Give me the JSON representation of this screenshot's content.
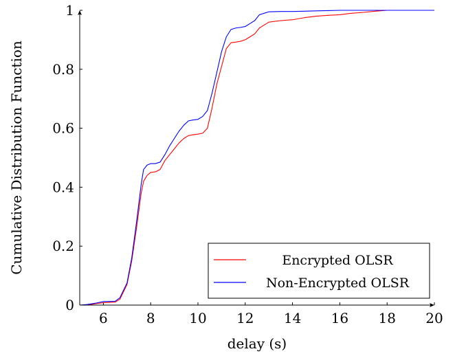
{
  "chart_data": {
    "type": "line",
    "title": "",
    "xlabel": "delay (s)",
    "ylabel": "Cumulative Distribution Function",
    "xlim": [
      5,
      20
    ],
    "ylim": [
      0,
      1
    ],
    "xticks": [
      6,
      8,
      10,
      12,
      14,
      16,
      18,
      20
    ],
    "yticks": [
      0,
      0.2,
      0.4,
      0.6,
      0.8,
      1
    ],
    "ytick_labels": [
      "0",
      "0.2",
      "0.4",
      "0.6",
      "0.8",
      "1"
    ],
    "grid": false,
    "legend_position": "bottom-right",
    "series": [
      {
        "name": "Encrypted OLSR",
        "color": "#ff0000",
        "x": [
          5.0,
          5.3,
          5.7,
          6.0,
          6.5,
          6.7,
          7.0,
          7.2,
          7.4,
          7.6,
          7.7,
          7.85,
          8.0,
          8.2,
          8.4,
          8.6,
          8.8,
          9.0,
          9.2,
          9.4,
          9.6,
          9.8,
          10.0,
          10.2,
          10.4,
          10.6,
          10.8,
          11.0,
          11.2,
          11.4,
          11.6,
          11.8,
          12.0,
          12.2,
          12.4,
          12.6,
          12.8,
          13.0,
          13.5,
          14.0,
          14.5,
          15.0,
          15.5,
          16.0,
          16.5,
          17.0,
          17.5,
          18.0,
          19.0,
          20.0
        ],
        "y": [
          0.0,
          0.0,
          0.005,
          0.008,
          0.01,
          0.02,
          0.07,
          0.15,
          0.26,
          0.38,
          0.42,
          0.44,
          0.45,
          0.452,
          0.46,
          0.49,
          0.51,
          0.53,
          0.55,
          0.565,
          0.575,
          0.578,
          0.58,
          0.583,
          0.6,
          0.67,
          0.75,
          0.81,
          0.87,
          0.89,
          0.892,
          0.895,
          0.9,
          0.91,
          0.92,
          0.94,
          0.95,
          0.96,
          0.965,
          0.968,
          0.975,
          0.98,
          0.983,
          0.985,
          0.99,
          0.993,
          0.997,
          1.0,
          1.0,
          1.0
        ]
      },
      {
        "name": "Non-Encrypted OLSR",
        "color": "#0000ff",
        "x": [
          5.0,
          5.3,
          5.7,
          6.0,
          6.5,
          6.7,
          7.0,
          7.2,
          7.4,
          7.6,
          7.7,
          7.85,
          8.0,
          8.2,
          8.4,
          8.6,
          8.8,
          9.0,
          9.2,
          9.4,
          9.6,
          9.8,
          10.0,
          10.2,
          10.4,
          10.6,
          10.8,
          11.0,
          11.2,
          11.4,
          11.6,
          11.8,
          12.0,
          12.2,
          12.4,
          12.6,
          12.8,
          13.0,
          13.5,
          14.0,
          14.5,
          15.0,
          15.5,
          16.0,
          16.5,
          17.0,
          17.5,
          18.0,
          19.0,
          20.0
        ],
        "y": [
          0.0,
          0.002,
          0.007,
          0.012,
          0.013,
          0.025,
          0.075,
          0.16,
          0.28,
          0.41,
          0.46,
          0.475,
          0.48,
          0.48,
          0.485,
          0.51,
          0.54,
          0.565,
          0.59,
          0.61,
          0.625,
          0.628,
          0.63,
          0.64,
          0.66,
          0.72,
          0.79,
          0.86,
          0.91,
          0.935,
          0.94,
          0.942,
          0.945,
          0.955,
          0.965,
          0.985,
          0.99,
          0.995,
          0.996,
          0.996,
          0.997,
          0.998,
          0.999,
          1.0,
          1.0,
          1.0,
          1.0,
          1.0,
          1.0,
          1.0
        ]
      }
    ]
  }
}
